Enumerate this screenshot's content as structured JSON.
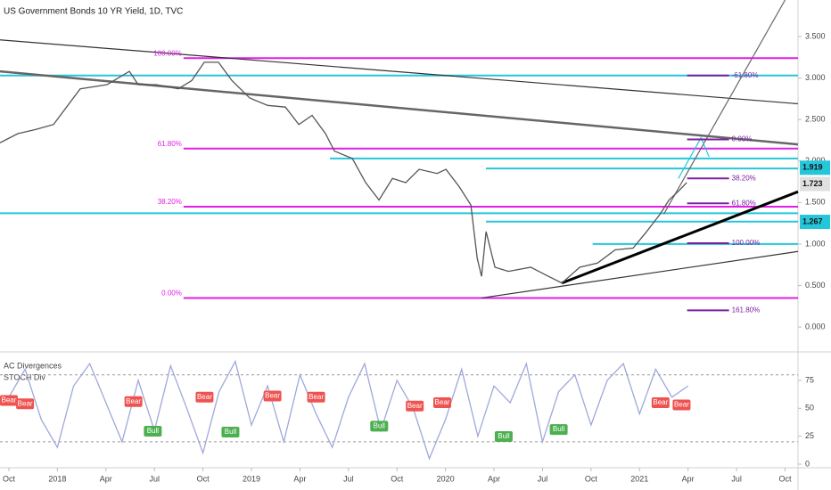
{
  "chart_data": [
    {
      "type": "line",
      "title": "US Government Bonds 10 YR Yield, 1D, TVC",
      "color": "#555555",
      "x": [
        -0.55,
        0.55,
        1.65,
        2.76,
        4.41,
        6.07,
        7.45,
        8.0,
        9.1,
        10.48,
        11.31,
        12.08,
        12.96,
        13.79,
        14.89,
        16.0,
        17.1,
        17.93,
        18.75,
        19.58,
        20.13,
        21.24,
        22.06,
        22.89,
        23.72,
        24.54,
        25.37,
        26.48,
        27.03,
        27.85,
        28.57,
        28.96,
        29.23,
        29.51,
        30.06,
        30.89,
        32.27,
        33.37,
        34.2,
        35.3,
        36.4,
        37.5,
        38.6,
        39.44,
        40.27,
        40.82,
        41.37,
        41.92
      ],
      "values": [
        2.22,
        2.33,
        2.38,
        2.44,
        2.87,
        2.92,
        3.08,
        2.92,
        2.92,
        2.87,
        2.97,
        3.19,
        3.19,
        2.97,
        2.76,
        2.67,
        2.65,
        2.44,
        2.55,
        2.33,
        2.12,
        2.03,
        1.74,
        1.53,
        1.79,
        1.74,
        1.9,
        1.85,
        1.9,
        1.69,
        1.47,
        0.83,
        0.61,
        1.15,
        0.72,
        0.67,
        0.72,
        0.61,
        0.53,
        0.72,
        0.77,
        0.93,
        0.95,
        1.15,
        1.36,
        1.53,
        1.63,
        1.74
      ],
      "xlim": [
        -0.55,
        48.8
      ],
      "xticks": [
        {
          "value": 0,
          "label": "Oct"
        },
        {
          "value": 3,
          "label": "2018"
        },
        {
          "value": 6,
          "label": "Apr"
        },
        {
          "value": 9,
          "label": "Jul"
        },
        {
          "value": 12,
          "label": "Oct"
        },
        {
          "value": 15,
          "label": "2019"
        },
        {
          "value": 18,
          "label": "Apr"
        },
        {
          "value": 21,
          "label": "Jul"
        },
        {
          "value": 24,
          "label": "Oct"
        },
        {
          "value": 27,
          "label": "2020"
        },
        {
          "value": 30,
          "label": "Apr"
        },
        {
          "value": 33,
          "label": "Jul"
        },
        {
          "value": 36,
          "label": "Oct"
        },
        {
          "value": 39,
          "label": "2021"
        },
        {
          "value": 42,
          "label": "Apr"
        },
        {
          "value": 45,
          "label": "Jul"
        },
        {
          "value": 48,
          "label": "Oct"
        }
      ],
      "ylim": [
        -0.3,
        3.94
      ],
      "yticks": [
        {
          "value": 0,
          "label": "0.000"
        },
        {
          "value": 0.5,
          "label": "0.500"
        },
        {
          "value": 1,
          "label": "1.000"
        },
        {
          "value": 1.5,
          "label": "1.500"
        },
        {
          "value": 2,
          "label": "2.000"
        },
        {
          "value": 2.5,
          "label": "2.500"
        },
        {
          "value": 3,
          "label": "3.000"
        },
        {
          "value": 3.5,
          "label": "3.500"
        }
      ],
      "levels": [
        {
          "value": 3.24,
          "from": 10.8,
          "color": "#e11ee6"
        },
        {
          "value": 2.15,
          "from": 10.8,
          "color": "#e11ee6"
        },
        {
          "value": 1.45,
          "from": 10.8,
          "color": "#e11ee6"
        },
        {
          "value": 0.35,
          "from": 10.8,
          "color": "#e11ee6"
        },
        {
          "value": 3.03,
          "from": -0.55,
          "color": "#26c6da"
        },
        {
          "value": 2.03,
          "from": 19.86,
          "color": "#26c6da"
        },
        {
          "value": 1.91,
          "from": 29.5,
          "color": "#26c6da"
        },
        {
          "value": 1.37,
          "from": -0.55,
          "color": "#26c6da"
        },
        {
          "value": 1.27,
          "from": 29.5,
          "color": "#26c6da"
        },
        {
          "value": 1.0,
          "from": 36.1,
          "color": "#26c6da"
        }
      ],
      "trendlines": [
        {
          "x": [
            -0.55,
            48.8
          ],
          "y": [
            3.46,
            2.69
          ],
          "color": "#333333"
        },
        {
          "x": [
            -0.55,
            48.8
          ],
          "y": [
            3.08,
            2.2
          ],
          "color": "#666666"
        },
        {
          "x": [
            34.2,
            48.8
          ],
          "y": [
            0.53,
            1.63
          ],
          "color": "#000000"
        },
        {
          "x": [
            29.23,
            48.8
          ],
          "y": [
            0.35,
            0.91
          ],
          "color": "#333333"
        },
        {
          "x": [
            40.5,
            48.0
          ],
          "y": [
            1.36,
            3.94
          ],
          "color": "#666666"
        },
        {
          "x": [
            41.4,
            42.8,
            43.3
          ],
          "y": [
            1.79,
            2.28,
            2.05
          ],
          "color": "#26c6da"
        }
      ],
      "fib_left": {
        "color": "#e11ee6",
        "x": 10.8,
        "labels": [
          {
            "value": 3.24,
            "label": "100.00%"
          },
          {
            "value": 2.15,
            "label": "61.80%"
          },
          {
            "value": 1.45,
            "label": "38.20%"
          },
          {
            "value": 0.35,
            "label": "0.00%"
          }
        ]
      },
      "fib_right": {
        "color": "#7b1fa2",
        "x": 44.7,
        "labels": [
          {
            "value": 3.03,
            "label": "-61.80%"
          },
          {
            "value": 2.26,
            "label": "0.00%"
          },
          {
            "value": 1.79,
            "label": "38.20%"
          },
          {
            "value": 1.49,
            "label": "61.80%"
          },
          {
            "value": 1.01,
            "label": "100.00%"
          },
          {
            "value": 0.2,
            "label": "161.80%"
          }
        ]
      },
      "price_labels": [
        {
          "value": 1.919,
          "color": "#26c6da"
        },
        {
          "value": 1.723,
          "color": "#e0e0e0"
        },
        {
          "value": 1.267,
          "color": "#26c6da"
        }
      ]
    },
    {
      "type": "line",
      "labels": [
        "AC Divergences",
        "STOCH Div"
      ],
      "color": "#9fa8da",
      "x": [
        0,
        1,
        2,
        3,
        4,
        5,
        6,
        7,
        8,
        9,
        10,
        11,
        12,
        13,
        14,
        15,
        16,
        17,
        18,
        19,
        20,
        21,
        22,
        23,
        24,
        25,
        26,
        27,
        28,
        29,
        30,
        31,
        32,
        33,
        34,
        35,
        36,
        37,
        38,
        39,
        40,
        41,
        42
      ],
      "values": [
        60,
        85,
        40,
        15,
        70,
        90,
        55,
        20,
        75,
        30,
        88,
        50,
        10,
        65,
        92,
        35,
        70,
        20,
        80,
        45,
        15,
        60,
        90,
        30,
        75,
        50,
        5,
        40,
        85,
        25,
        70,
        55,
        90,
        20,
        65,
        80,
        35,
        75,
        90,
        45,
        85,
        60,
        70
      ],
      "ylim": [
        -3.2,
        100.5
      ],
      "yticks": [
        0,
        25,
        50,
        75
      ],
      "levels": [
        80,
        20
      ],
      "markers": [
        {
          "x": 0,
          "value": 57,
          "label": "Bear",
          "color": "#ef5350"
        },
        {
          "x": 1,
          "value": 54,
          "label": "Bear",
          "color": "#ef5350"
        },
        {
          "x": 7.7,
          "value": 56,
          "label": "Bear",
          "color": "#ef5350"
        },
        {
          "x": 12.1,
          "value": 60,
          "label": "Bear",
          "color": "#ef5350"
        },
        {
          "x": 16.3,
          "value": 61,
          "label": "Bear",
          "color": "#ef5350"
        },
        {
          "x": 19.0,
          "value": 60,
          "label": "Bear",
          "color": "#ef5350"
        },
        {
          "x": 25.1,
          "value": 52,
          "label": "Bear",
          "color": "#ef5350"
        },
        {
          "x": 26.8,
          "value": 55,
          "label": "Bear",
          "color": "#ef5350"
        },
        {
          "x": 40.3,
          "value": 55,
          "label": "Bear",
          "color": "#ef5350"
        },
        {
          "x": 41.6,
          "value": 53,
          "label": "Bear",
          "color": "#ef5350"
        },
        {
          "x": 8.9,
          "value": 29.5,
          "label": "Bull",
          "color": "#4caf50"
        },
        {
          "x": 13.7,
          "value": 28.7,
          "label": "Bull",
          "color": "#4caf50"
        },
        {
          "x": 22.9,
          "value": 34,
          "label": "Bull",
          "color": "#4caf50"
        },
        {
          "x": 30.6,
          "value": 24.7,
          "label": "Bull",
          "color": "#4caf50"
        },
        {
          "x": 34.0,
          "value": 31,
          "label": "Bull",
          "color": "#4caf50"
        }
      ]
    }
  ]
}
